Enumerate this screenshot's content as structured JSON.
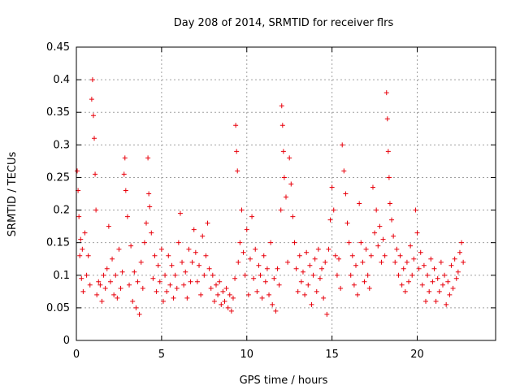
{
  "chart_data": {
    "type": "scatter",
    "title": "Day 208 of 2014, SRMTID for receiver flrs",
    "xlabel": "GPS time / hours",
    "ylabel": "SRMTID / TECUs",
    "xlim": [
      0,
      24.6
    ],
    "ylim": [
      0,
      0.45
    ],
    "xticks": [
      0,
      5,
      10,
      15,
      20
    ],
    "xtick_labels": [
      "0",
      "5",
      "10",
      "15",
      "20"
    ],
    "yticks": [
      0,
      0.05,
      0.1,
      0.15,
      0.2,
      0.25,
      0.3,
      0.35,
      0.4,
      0.45
    ],
    "ytick_labels": [
      "0",
      "0.05",
      "0.1",
      "0.15",
      "0.2",
      "0.25",
      "0.3",
      "0.35",
      "0.4",
      "0.45"
    ],
    "grid": true,
    "marker": "+",
    "color": "#e8000b",
    "series": [
      {
        "name": "SRMTID",
        "points": [
          [
            0.05,
            0.26
          ],
          [
            0.1,
            0.23
          ],
          [
            0.15,
            0.19
          ],
          [
            0.2,
            0.13
          ],
          [
            0.25,
            0.155
          ],
          [
            0.3,
            0.095
          ],
          [
            0.35,
            0.14
          ],
          [
            0.4,
            0.075
          ],
          [
            0.5,
            0.165
          ],
          [
            0.6,
            0.1
          ],
          [
            0.7,
            0.13
          ],
          [
            0.8,
            0.085
          ],
          [
            0.9,
            0.37
          ],
          [
            0.95,
            0.4
          ],
          [
            1.0,
            0.345
          ],
          [
            1.05,
            0.31
          ],
          [
            1.1,
            0.255
          ],
          [
            1.15,
            0.2
          ],
          [
            1.2,
            0.07
          ],
          [
            1.3,
            0.09
          ],
          [
            1.4,
            0.085
          ],
          [
            1.5,
            0.06
          ],
          [
            1.6,
            0.1
          ],
          [
            1.7,
            0.08
          ],
          [
            1.8,
            0.11
          ],
          [
            1.9,
            0.175
          ],
          [
            2.0,
            0.09
          ],
          [
            2.1,
            0.125
          ],
          [
            2.2,
            0.07
          ],
          [
            2.3,
            0.1
          ],
          [
            2.4,
            0.065
          ],
          [
            2.5,
            0.14
          ],
          [
            2.6,
            0.08
          ],
          [
            2.7,
            0.105
          ],
          [
            2.8,
            0.255
          ],
          [
            2.85,
            0.28
          ],
          [
            2.9,
            0.23
          ],
          [
            3.0,
            0.19
          ],
          [
            3.1,
            0.085
          ],
          [
            3.2,
            0.145
          ],
          [
            3.3,
            0.06
          ],
          [
            3.4,
            0.105
          ],
          [
            3.5,
            0.05
          ],
          [
            3.6,
            0.09
          ],
          [
            3.7,
            0.04
          ],
          [
            3.8,
            0.12
          ],
          [
            3.9,
            0.08
          ],
          [
            4.0,
            0.15
          ],
          [
            4.1,
            0.18
          ],
          [
            4.2,
            0.28
          ],
          [
            4.25,
            0.225
          ],
          [
            4.3,
            0.205
          ],
          [
            4.4,
            0.165
          ],
          [
            4.5,
            0.095
          ],
          [
            4.6,
            0.13
          ],
          [
            4.7,
            0.075
          ],
          [
            4.8,
            0.115
          ],
          [
            4.9,
            0.09
          ],
          [
            5.0,
            0.14
          ],
          [
            5.1,
            0.06
          ],
          [
            5.2,
            0.1
          ],
          [
            5.3,
            0.075
          ],
          [
            5.4,
            0.13
          ],
          [
            5.5,
            0.085
          ],
          [
            5.6,
            0.115
          ],
          [
            5.7,
            0.065
          ],
          [
            5.8,
            0.1
          ],
          [
            5.9,
            0.08
          ],
          [
            6.0,
            0.15
          ],
          [
            6.1,
            0.195
          ],
          [
            6.2,
            0.12
          ],
          [
            6.3,
            0.085
          ],
          [
            6.4,
            0.105
          ],
          [
            6.5,
            0.065
          ],
          [
            6.6,
            0.14
          ],
          [
            6.7,
            0.09
          ],
          [
            6.8,
            0.12
          ],
          [
            6.9,
            0.17
          ],
          [
            7.0,
            0.135
          ],
          [
            7.1,
            0.09
          ],
          [
            7.2,
            0.115
          ],
          [
            7.3,
            0.07
          ],
          [
            7.4,
            0.16
          ],
          [
            7.5,
            0.1
          ],
          [
            7.6,
            0.13
          ],
          [
            7.7,
            0.18
          ],
          [
            7.8,
            0.11
          ],
          [
            7.9,
            0.08
          ],
          [
            8.0,
            0.1
          ],
          [
            8.1,
            0.06
          ],
          [
            8.2,
            0.085
          ],
          [
            8.3,
            0.07
          ],
          [
            8.4,
            0.09
          ],
          [
            8.5,
            0.055
          ],
          [
            8.6,
            0.075
          ],
          [
            8.7,
            0.06
          ],
          [
            8.8,
            0.08
          ],
          [
            8.9,
            0.05
          ],
          [
            9.0,
            0.07
          ],
          [
            9.1,
            0.045
          ],
          [
            9.2,
            0.065
          ],
          [
            9.3,
            0.095
          ],
          [
            9.35,
            0.33
          ],
          [
            9.4,
            0.29
          ],
          [
            9.45,
            0.26
          ],
          [
            9.5,
            0.12
          ],
          [
            9.6,
            0.15
          ],
          [
            9.7,
            0.2
          ],
          [
            9.8,
            0.135
          ],
          [
            9.9,
            0.1
          ],
          [
            10.0,
            0.17
          ],
          [
            10.1,
            0.07
          ],
          [
            10.2,
            0.125
          ],
          [
            10.3,
            0.19
          ],
          [
            10.4,
            0.095
          ],
          [
            10.5,
            0.14
          ],
          [
            10.6,
            0.075
          ],
          [
            10.7,
            0.115
          ],
          [
            10.8,
            0.1
          ],
          [
            10.9,
            0.065
          ],
          [
            11.0,
            0.13
          ],
          [
            11.1,
            0.09
          ],
          [
            11.2,
            0.11
          ],
          [
            11.3,
            0.07
          ],
          [
            11.4,
            0.15
          ],
          [
            11.5,
            0.055
          ],
          [
            11.6,
            0.095
          ],
          [
            11.7,
            0.045
          ],
          [
            11.8,
            0.11
          ],
          [
            11.9,
            0.085
          ],
          [
            12.0,
            0.2
          ],
          [
            12.05,
            0.36
          ],
          [
            12.1,
            0.33
          ],
          [
            12.15,
            0.29
          ],
          [
            12.2,
            0.25
          ],
          [
            12.3,
            0.22
          ],
          [
            12.4,
            0.12
          ],
          [
            12.5,
            0.28
          ],
          [
            12.6,
            0.24
          ],
          [
            12.7,
            0.19
          ],
          [
            12.8,
            0.15
          ],
          [
            12.9,
            0.11
          ],
          [
            13.0,
            0.075
          ],
          [
            13.1,
            0.13
          ],
          [
            13.2,
            0.09
          ],
          [
            13.3,
            0.105
          ],
          [
            13.4,
            0.07
          ],
          [
            13.5,
            0.135
          ],
          [
            13.6,
            0.085
          ],
          [
            13.7,
            0.115
          ],
          [
            13.8,
            0.055
          ],
          [
            13.9,
            0.1
          ],
          [
            14.0,
            0.125
          ],
          [
            14.1,
            0.075
          ],
          [
            14.2,
            0.14
          ],
          [
            14.3,
            0.095
          ],
          [
            14.4,
            0.11
          ],
          [
            14.5,
            0.065
          ],
          [
            14.6,
            0.12
          ],
          [
            14.7,
            0.04
          ],
          [
            14.8,
            0.14
          ],
          [
            14.9,
            0.185
          ],
          [
            15.0,
            0.235
          ],
          [
            15.1,
            0.2
          ],
          [
            15.2,
            0.13
          ],
          [
            15.3,
            0.1
          ],
          [
            15.4,
            0.125
          ],
          [
            15.5,
            0.08
          ],
          [
            15.6,
            0.3
          ],
          [
            15.7,
            0.26
          ],
          [
            15.8,
            0.225
          ],
          [
            15.9,
            0.18
          ],
          [
            16.0,
            0.15
          ],
          [
            16.1,
            0.1
          ],
          [
            16.2,
            0.13
          ],
          [
            16.3,
            0.085
          ],
          [
            16.4,
            0.115
          ],
          [
            16.5,
            0.07
          ],
          [
            16.6,
            0.21
          ],
          [
            16.7,
            0.15
          ],
          [
            16.8,
            0.12
          ],
          [
            16.9,
            0.09
          ],
          [
            17.0,
            0.14
          ],
          [
            17.1,
            0.1
          ],
          [
            17.2,
            0.08
          ],
          [
            17.3,
            0.13
          ],
          [
            17.4,
            0.235
          ],
          [
            17.5,
            0.165
          ],
          [
            17.6,
            0.2
          ],
          [
            17.7,
            0.145
          ],
          [
            17.8,
            0.175
          ],
          [
            17.9,
            0.12
          ],
          [
            18.0,
            0.155
          ],
          [
            18.1,
            0.13
          ],
          [
            18.2,
            0.38
          ],
          [
            18.25,
            0.34
          ],
          [
            18.3,
            0.29
          ],
          [
            18.35,
            0.25
          ],
          [
            18.4,
            0.21
          ],
          [
            18.5,
            0.185
          ],
          [
            18.6,
            0.16
          ],
          [
            18.7,
            0.12
          ],
          [
            18.8,
            0.14
          ],
          [
            18.9,
            0.1
          ],
          [
            19.0,
            0.13
          ],
          [
            19.1,
            0.085
          ],
          [
            19.2,
            0.11
          ],
          [
            19.3,
            0.075
          ],
          [
            19.4,
            0.12
          ],
          [
            19.5,
            0.09
          ],
          [
            19.6,
            0.145
          ],
          [
            19.7,
            0.1
          ],
          [
            19.8,
            0.125
          ],
          [
            19.9,
            0.2
          ],
          [
            20.0,
            0.165
          ],
          [
            20.1,
            0.11
          ],
          [
            20.2,
            0.135
          ],
          [
            20.3,
            0.085
          ],
          [
            20.4,
            0.115
          ],
          [
            20.5,
            0.06
          ],
          [
            20.6,
            0.1
          ],
          [
            20.7,
            0.075
          ],
          [
            20.8,
            0.125
          ],
          [
            20.9,
            0.09
          ],
          [
            21.0,
            0.11
          ],
          [
            21.1,
            0.06
          ],
          [
            21.2,
            0.095
          ],
          [
            21.3,
            0.075
          ],
          [
            21.4,
            0.12
          ],
          [
            21.5,
            0.085
          ],
          [
            21.6,
            0.1
          ],
          [
            21.7,
            0.055
          ],
          [
            21.8,
            0.09
          ],
          [
            21.9,
            0.07
          ],
          [
            22.0,
            0.115
          ],
          [
            22.1,
            0.08
          ],
          [
            22.2,
            0.125
          ],
          [
            22.3,
            0.095
          ],
          [
            22.4,
            0.105
          ],
          [
            22.5,
            0.135
          ],
          [
            22.6,
            0.15
          ],
          [
            22.7,
            0.12
          ]
        ]
      }
    ]
  }
}
